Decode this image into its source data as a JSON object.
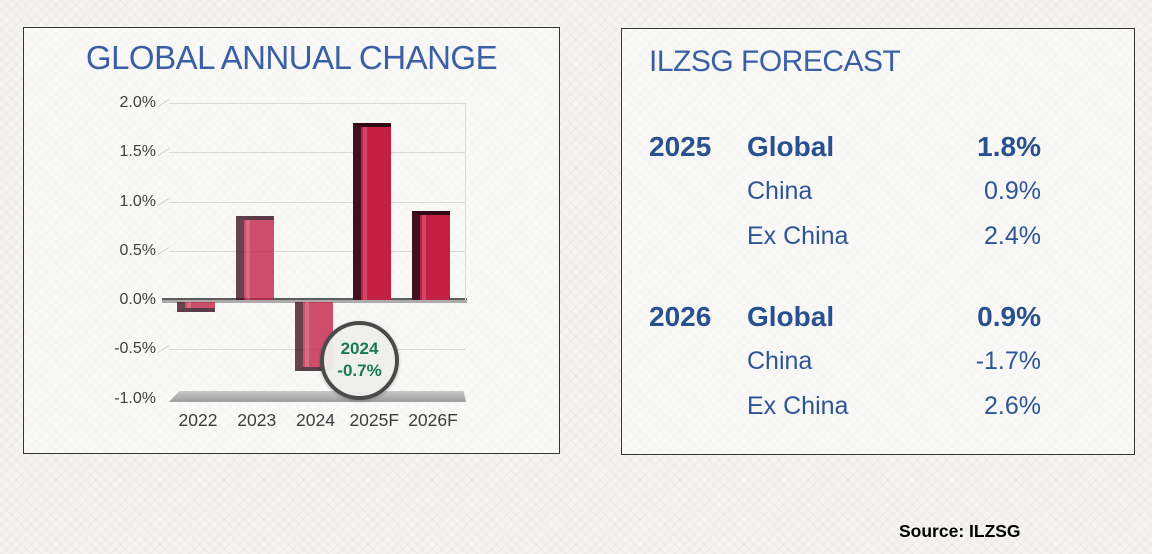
{
  "left_panel": {
    "title": "GLOBAL ANNUAL CHANGE"
  },
  "right_panel": {
    "title": "ILZSG FORECAST",
    "rows": [
      {
        "year": "2025",
        "label": "Global",
        "value": "1.8%"
      },
      {
        "year": "",
        "label": "China",
        "value": "0.9%"
      },
      {
        "year": "",
        "label": "Ex China",
        "value": "2.4%"
      },
      {
        "year": "2026",
        "label": "Global",
        "value": "0.9%"
      },
      {
        "year": "",
        "label": "China",
        "value": "-1.7%"
      },
      {
        "year": "",
        "label": "Ex China",
        "value": "2.6%"
      }
    ]
  },
  "source_note": "Source: ILZSG",
  "chart_data": {
    "type": "bar",
    "title": "GLOBAL ANNUAL CHANGE",
    "categories": [
      "2022",
      "2023",
      "2024",
      "2025F",
      "2026F"
    ],
    "values": [
      -0.1,
      0.85,
      -0.7,
      1.8,
      0.9
    ],
    "bar_styles": [
      "history",
      "history",
      "history",
      "forecast",
      "forecast"
    ],
    "ytick_labels": [
      "2.0%",
      "1.5%",
      "1.0%",
      "0.5%",
      "0.0%",
      "-0.5%",
      "-1.0%"
    ],
    "ytick_values": [
      2.0,
      1.5,
      1.0,
      0.5,
      0.0,
      -0.5,
      -1.0
    ],
    "ylim": [
      -1.0,
      2.0
    ],
    "xlabel": "",
    "ylabel": "",
    "grid": true,
    "legend": false,
    "annotation": {
      "line1": "2024",
      "line2": "-0.7%"
    },
    "colors": {
      "bar_front": "#c41f45",
      "bar_side": "#43101f",
      "title_blue": "#3a5fa5",
      "forecast_text_blue": "#2d5596",
      "annotation_green": "#177a52",
      "floor_gray": "#a8a8a8"
    }
  }
}
